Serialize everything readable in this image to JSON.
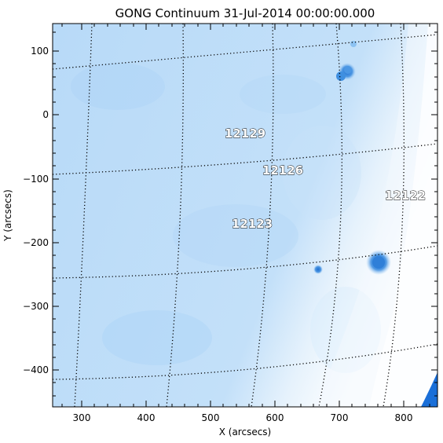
{
  "title": "GONG Continuum 31-Jul-2014 00:00:00.000",
  "x_axis": {
    "label": "X (arcsecs)",
    "ticks": [
      "300",
      "400",
      "500",
      "600",
      "700",
      "800"
    ]
  },
  "y_axis": {
    "label": "Y (arcsecs)",
    "ticks": [
      "100",
      "0",
      "−100",
      "−200",
      "−300",
      "−400"
    ]
  },
  "regions": [
    "12129",
    "12126",
    "12122",
    "12123"
  ],
  "colors": {
    "background": "#ffffff",
    "disk": "#bcdcf8",
    "disk_limb": "#ffffff",
    "sunspot": "#3d8fe0",
    "off_disk": "#1a6fd8",
    "grid": "#000000"
  }
}
